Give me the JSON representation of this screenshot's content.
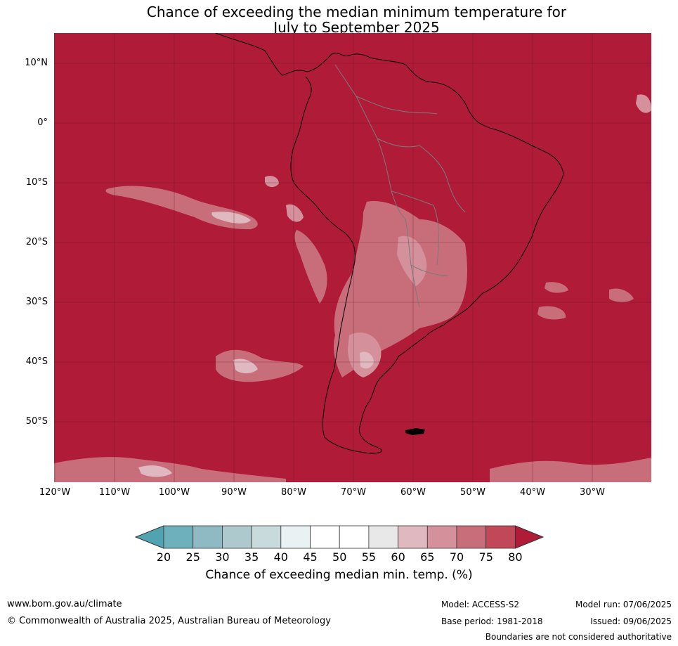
{
  "title": {
    "line1": "Chance of exceeding the median minimum temperature for",
    "line2": "July to September 2025"
  },
  "map": {
    "lat_labels": [
      "10°N",
      "0°",
      "10°S",
      "20°S",
      "30°S",
      "40°S",
      "50°S"
    ],
    "lon_labels": [
      "120°W",
      "110°W",
      "100°W",
      "90°W",
      "80°W",
      "70°W",
      "60°W",
      "50°W",
      "40°W",
      "30°W"
    ],
    "colors": {
      "c20": "#52a3b1",
      "c25": "#6fb0bd",
      "c30": "#8fbac4",
      "c35": "#adc9cd",
      "c40": "#c9dadc",
      "c45": "#eaf1f2",
      "c50": "#ffffff",
      "c55": "#ffffff",
      "c60": "#e8e8e8",
      "c65": "#e0b8bf",
      "c70": "#d4919c",
      "c75": "#c86e7b",
      "c80": "#c04858",
      "above80": "#b01c38",
      "grid": "#5a1020",
      "coast": "#000000",
      "border": "#7a7a7a"
    }
  },
  "colorbar": {
    "ticks": [
      "20",
      "25",
      "30",
      "35",
      "40",
      "45",
      "50",
      "55",
      "60",
      "65",
      "70",
      "75",
      "80"
    ],
    "label": "Chance of exceeding median min. temp. (%)"
  },
  "footer": {
    "url": "www.bom.gov.au/climate",
    "copyright": "© Commonwealth of Australia 2025, Australian Bureau of Meteorology",
    "model": "Model: ACCESS-S2",
    "base_period": "Base period: 1981-2018",
    "model_run": "Model run: 07/06/2025",
    "issued": "Issued: 09/06/2025",
    "disclaimer": "Boundaries are not considered authoritative"
  }
}
